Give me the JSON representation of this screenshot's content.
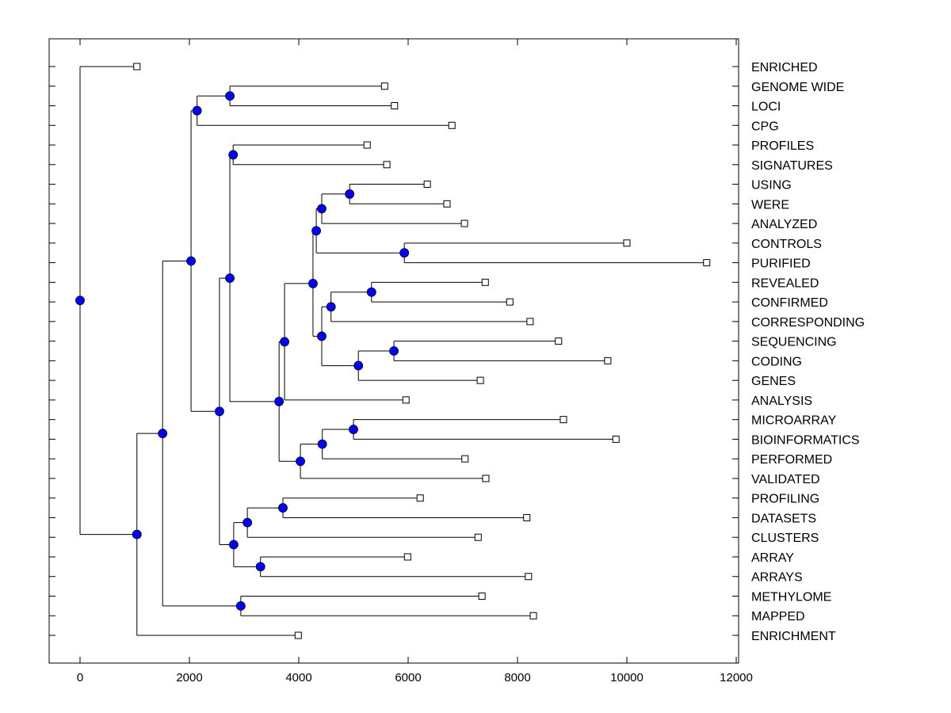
{
  "chart_data": {
    "type": "dendrogram",
    "title": "",
    "xlabel": "",
    "ylabel": "",
    "xlim": [
      -550,
      12000
    ],
    "xticks": [
      0,
      2000,
      4000,
      6000,
      8000,
      10000,
      12000
    ],
    "xtick_labels": [
      "0",
      "2000",
      "4000",
      "6000",
      "8000",
      "10000",
      "12000"
    ],
    "grid": false,
    "label_side": "right",
    "colors": {
      "node_fill": "#0000FF",
      "line": "#000000",
      "leaf_fill": "#FFFFFF"
    },
    "leaves": [
      {
        "id": "ENRICHED",
        "label": "ENRICHED",
        "value": 1040
      },
      {
        "id": "GENOME WIDE",
        "label": "GENOME WIDE",
        "value": 5570
      },
      {
        "id": "LOCI",
        "label": "LOCI",
        "value": 5750
      },
      {
        "id": "CPG",
        "label": "CPG",
        "value": 6800
      },
      {
        "id": "PROFILES",
        "label": "PROFILES",
        "value": 5250
      },
      {
        "id": "SIGNATURES",
        "label": "SIGNATURES",
        "value": 5610
      },
      {
        "id": "USING",
        "label": "USING",
        "value": 6350
      },
      {
        "id": "WERE",
        "label": "WERE",
        "value": 6710
      },
      {
        "id": "ANALYZED",
        "label": "ANALYZED",
        "value": 7030
      },
      {
        "id": "CONTROLS",
        "label": "CONTROLS",
        "value": 10000
      },
      {
        "id": "PURIFIED",
        "label": "PURIFIED",
        "value": 11460
      },
      {
        "id": "REVEALED",
        "label": "REVEALED",
        "value": 7410
      },
      {
        "id": "CONFIRMED",
        "label": "CONFIRMED",
        "value": 7860
      },
      {
        "id": "CORRESPONDING",
        "label": "CORRESPONDING",
        "value": 8230
      },
      {
        "id": "SEQUENCING",
        "label": "SEQUENCING",
        "value": 8750
      },
      {
        "id": "CODING",
        "label": "CODING",
        "value": 9650
      },
      {
        "id": "GENES",
        "label": "GENES",
        "value": 7320
      },
      {
        "id": "ANALYSIS",
        "label": "ANALYSIS",
        "value": 5960
      },
      {
        "id": "MICROARRAY",
        "label": "MICROARRAY",
        "value": 8840
      },
      {
        "id": "BIOINFORMATICS",
        "label": "BIOINFORMATICS",
        "value": 9800
      },
      {
        "id": "PERFORMED",
        "label": "PERFORMED",
        "value": 7040
      },
      {
        "id": "VALIDATED",
        "label": "VALIDATED",
        "value": 7420
      },
      {
        "id": "PROFILING",
        "label": "PROFILING",
        "value": 6220
      },
      {
        "id": "DATASETS",
        "label": "DATASETS",
        "value": 8170
      },
      {
        "id": "CLUSTERS",
        "label": "CLUSTERS",
        "value": 7280
      },
      {
        "id": "ARRAY",
        "label": "ARRAY",
        "value": 5990
      },
      {
        "id": "ARRAYS",
        "label": "ARRAYS",
        "value": 8200
      },
      {
        "id": "METHYLOME",
        "label": "METHYLOME",
        "value": 7350
      },
      {
        "id": "MAPPED",
        "label": "MAPPED",
        "value": 8290
      },
      {
        "id": "ENRICHMENT",
        "label": "ENRICHMENT",
        "value": 3990
      }
    ],
    "nodes": [
      {
        "id": "n_gw_loci",
        "value": 2740,
        "children": [
          "GENOME WIDE",
          "LOCI"
        ]
      },
      {
        "id": "n_cpg",
        "value": 2140,
        "children": [
          "n_gw_loci",
          "CPG"
        ]
      },
      {
        "id": "n_prof_sig",
        "value": 2800,
        "children": [
          "PROFILES",
          "SIGNATURES"
        ]
      },
      {
        "id": "n_using_were",
        "value": 4930,
        "children": [
          "USING",
          "WERE"
        ]
      },
      {
        "id": "n_uw_analyzed",
        "value": 4420,
        "children": [
          "n_using_were",
          "ANALYZED"
        ]
      },
      {
        "id": "n_controls_purified",
        "value": 5930,
        "children": [
          "CONTROLS",
          "PURIFIED"
        ]
      },
      {
        "id": "n_a",
        "value": 4320,
        "children": [
          "n_uw_analyzed",
          "n_controls_purified"
        ]
      },
      {
        "id": "n_rev_conf",
        "value": 5330,
        "children": [
          "REVEALED",
          "CONFIRMED"
        ]
      },
      {
        "id": "n_rc_corr",
        "value": 4590,
        "children": [
          "n_rev_conf",
          "CORRESPONDING"
        ]
      },
      {
        "id": "n_seq_coding",
        "value": 5740,
        "children": [
          "SEQUENCING",
          "CODING"
        ]
      },
      {
        "id": "n_sc_genes",
        "value": 5090,
        "children": [
          "n_seq_coding",
          "GENES"
        ]
      },
      {
        "id": "n_b",
        "value": 4420,
        "children": [
          "n_rc_corr",
          "n_sc_genes"
        ]
      },
      {
        "id": "n_c",
        "value": 4260,
        "children": [
          "n_a",
          "n_b"
        ]
      },
      {
        "id": "n_d",
        "value": 3740,
        "children": [
          "n_c",
          "ANALYSIS"
        ]
      },
      {
        "id": "n_micro_bio",
        "value": 5000,
        "children": [
          "MICROARRAY",
          "BIOINFORMATICS"
        ]
      },
      {
        "id": "n_mb_perf",
        "value": 4430,
        "children": [
          "n_micro_bio",
          "PERFORMED"
        ]
      },
      {
        "id": "n_mbp_valid",
        "value": 4030,
        "children": [
          "n_mb_perf",
          "VALIDATED"
        ]
      },
      {
        "id": "n_e",
        "value": 3640,
        "children": [
          "n_d",
          "n_mbp_valid"
        ]
      },
      {
        "id": "n_f",
        "value": 2740,
        "children": [
          "n_prof_sig",
          "n_e"
        ]
      },
      {
        "id": "n_prof_data",
        "value": 3710,
        "children": [
          "PROFILING",
          "DATASETS"
        ]
      },
      {
        "id": "n_pd_clust",
        "value": 3060,
        "children": [
          "n_prof_data",
          "CLUSTERS"
        ]
      },
      {
        "id": "n_arr_arrs",
        "value": 3300,
        "children": [
          "ARRAY",
          "ARRAYS"
        ]
      },
      {
        "id": "n_h",
        "value": 2810,
        "children": [
          "n_pd_clust",
          "n_arr_arrs"
        ]
      },
      {
        "id": "n_g",
        "value": 2550,
        "children": [
          "n_f",
          "n_h"
        ]
      },
      {
        "id": "n_i",
        "value": 2030,
        "children": [
          "n_cpg",
          "n_g"
        ]
      },
      {
        "id": "n_meth_map",
        "value": 2940,
        "children": [
          "METHYLOME",
          "MAPPED"
        ]
      },
      {
        "id": "n_j",
        "value": 1510,
        "children": [
          "n_i",
          "n_meth_map"
        ]
      },
      {
        "id": "n_k",
        "value": 1040,
        "children": [
          "n_j",
          "ENRICHMENT"
        ]
      },
      {
        "id": "root",
        "value": 0,
        "children": [
          "ENRICHED",
          "n_k"
        ]
      }
    ]
  }
}
